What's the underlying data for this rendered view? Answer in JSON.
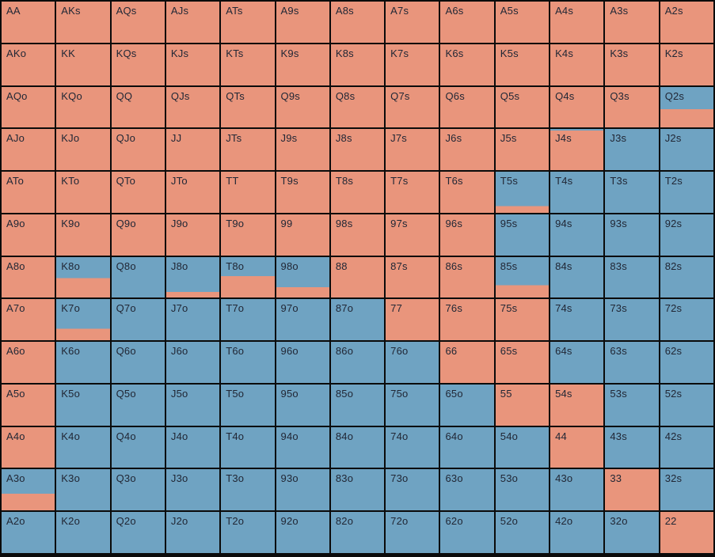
{
  "chart_data": {
    "type": "heatmap",
    "title": "",
    "rows": 13,
    "cols": 13,
    "grid": "13x13 poker starting-hand matrix",
    "palette": {
      "s": "#E9957C",
      "b": "#6FA3C2"
    },
    "palette_names": {
      "s": "salmon",
      "b": "blue"
    },
    "border_color": "#0b0b0b",
    "label_color": "#212735",
    "cells": [
      [
        {
          "label": "AA",
          "fill": "s"
        },
        {
          "label": "AKs",
          "fill": "s"
        },
        {
          "label": "AQs",
          "fill": "s"
        },
        {
          "label": "AJs",
          "fill": "s"
        },
        {
          "label": "ATs",
          "fill": "s"
        },
        {
          "label": "A9s",
          "fill": "s"
        },
        {
          "label": "A8s",
          "fill": "s"
        },
        {
          "label": "A7s",
          "fill": "s"
        },
        {
          "label": "A6s",
          "fill": "s"
        },
        {
          "label": "A5s",
          "fill": "s"
        },
        {
          "label": "A4s",
          "fill": "s"
        },
        {
          "label": "A3s",
          "fill": "s"
        },
        {
          "label": "A2s",
          "fill": "s"
        }
      ],
      [
        {
          "label": "AKo",
          "fill": "s"
        },
        {
          "label": "KK",
          "fill": "s"
        },
        {
          "label": "KQs",
          "fill": "s"
        },
        {
          "label": "KJs",
          "fill": "s"
        },
        {
          "label": "KTs",
          "fill": "s"
        },
        {
          "label": "K9s",
          "fill": "s"
        },
        {
          "label": "K8s",
          "fill": "s"
        },
        {
          "label": "K7s",
          "fill": "s"
        },
        {
          "label": "K6s",
          "fill": "s"
        },
        {
          "label": "K5s",
          "fill": "s"
        },
        {
          "label": "K4s",
          "fill": "s"
        },
        {
          "label": "K3s",
          "fill": "s"
        },
        {
          "label": "K2s",
          "fill": "s"
        }
      ],
      [
        {
          "label": "AQo",
          "fill": "s"
        },
        {
          "label": "KQo",
          "fill": "s"
        },
        {
          "label": "QQ",
          "fill": "s"
        },
        {
          "label": "QJs",
          "fill": "s"
        },
        {
          "label": "QTs",
          "fill": "s"
        },
        {
          "label": "Q9s",
          "fill": "s"
        },
        {
          "label": "Q8s",
          "fill": "s"
        },
        {
          "label": "Q7s",
          "fill": "s"
        },
        {
          "label": "Q6s",
          "fill": "s"
        },
        {
          "label": "Q5s",
          "fill": "s"
        },
        {
          "label": "Q4s",
          "fill": "s"
        },
        {
          "label": "Q3s",
          "fill": "s"
        },
        {
          "label": "Q2s",
          "fill": [
            [
              "b",
              55
            ],
            [
              "s",
              45
            ]
          ]
        }
      ],
      [
        {
          "label": "AJo",
          "fill": "s"
        },
        {
          "label": "KJo",
          "fill": "s"
        },
        {
          "label": "QJo",
          "fill": "s"
        },
        {
          "label": "JJ",
          "fill": "s"
        },
        {
          "label": "JTs",
          "fill": "s"
        },
        {
          "label": "J9s",
          "fill": "s"
        },
        {
          "label": "J8s",
          "fill": "s"
        },
        {
          "label": "J7s",
          "fill": "s"
        },
        {
          "label": "J6s",
          "fill": "s"
        },
        {
          "label": "J5s",
          "fill": "s"
        },
        {
          "label": "J4s",
          "fill": [
            [
              "b",
              4
            ],
            [
              "s",
              96
            ]
          ]
        },
        {
          "label": "J3s",
          "fill": "b"
        },
        {
          "label": "J2s",
          "fill": "b"
        }
      ],
      [
        {
          "label": "ATo",
          "fill": "s"
        },
        {
          "label": "KTo",
          "fill": "s"
        },
        {
          "label": "QTo",
          "fill": "s"
        },
        {
          "label": "JTo",
          "fill": "s"
        },
        {
          "label": "TT",
          "fill": "s"
        },
        {
          "label": "T9s",
          "fill": "s"
        },
        {
          "label": "T8s",
          "fill": "s"
        },
        {
          "label": "T7s",
          "fill": "s"
        },
        {
          "label": "T6s",
          "fill": "s"
        },
        {
          "label": "T5s",
          "fill": [
            [
              "b",
              84
            ],
            [
              "s",
              16
            ]
          ]
        },
        {
          "label": "T4s",
          "fill": "b"
        },
        {
          "label": "T3s",
          "fill": "b"
        },
        {
          "label": "T2s",
          "fill": "b"
        }
      ],
      [
        {
          "label": "A9o",
          "fill": "s"
        },
        {
          "label": "K9o",
          "fill": "s"
        },
        {
          "label": "Q9o",
          "fill": "s"
        },
        {
          "label": "J9o",
          "fill": "s"
        },
        {
          "label": "T9o",
          "fill": "s"
        },
        {
          "label": "99",
          "fill": "s"
        },
        {
          "label": "98s",
          "fill": "s"
        },
        {
          "label": "97s",
          "fill": "s"
        },
        {
          "label": "96s",
          "fill": "s"
        },
        {
          "label": "95s",
          "fill": "b"
        },
        {
          "label": "94s",
          "fill": "b"
        },
        {
          "label": "93s",
          "fill": "b"
        },
        {
          "label": "92s",
          "fill": "b"
        }
      ],
      [
        {
          "label": "A8o",
          "fill": "s"
        },
        {
          "label": "K8o",
          "fill": [
            [
              "b",
              52
            ],
            [
              "s",
              48
            ]
          ]
        },
        {
          "label": "Q8o",
          "fill": "b"
        },
        {
          "label": "J8o",
          "fill": [
            [
              "b",
              86
            ],
            [
              "s",
              14
            ]
          ]
        },
        {
          "label": "T8o",
          "fill": [
            [
              "b",
              47
            ],
            [
              "s",
              53
            ]
          ]
        },
        {
          "label": "98o",
          "fill": [
            [
              "b",
              75
            ],
            [
              "s",
              25
            ]
          ]
        },
        {
          "label": "88",
          "fill": "s"
        },
        {
          "label": "87s",
          "fill": "s"
        },
        {
          "label": "86s",
          "fill": "s"
        },
        {
          "label": "85s",
          "fill": [
            [
              "b",
              70
            ],
            [
              "s",
              30
            ]
          ]
        },
        {
          "label": "84s",
          "fill": "b"
        },
        {
          "label": "83s",
          "fill": "b"
        },
        {
          "label": "82s",
          "fill": "b"
        }
      ],
      [
        {
          "label": "A7o",
          "fill": "s"
        },
        {
          "label": "K7o",
          "fill": [
            [
              "b",
              72
            ],
            [
              "s",
              28
            ]
          ]
        },
        {
          "label": "Q7o",
          "fill": "b"
        },
        {
          "label": "J7o",
          "fill": "b"
        },
        {
          "label": "T7o",
          "fill": "b"
        },
        {
          "label": "97o",
          "fill": "b"
        },
        {
          "label": "87o",
          "fill": "b"
        },
        {
          "label": "77",
          "fill": "s"
        },
        {
          "label": "76s",
          "fill": "s"
        },
        {
          "label": "75s",
          "fill": "s"
        },
        {
          "label": "74s",
          "fill": "b"
        },
        {
          "label": "73s",
          "fill": "b"
        },
        {
          "label": "72s",
          "fill": "b"
        }
      ],
      [
        {
          "label": "A6o",
          "fill": "s"
        },
        {
          "label": "K6o",
          "fill": "b"
        },
        {
          "label": "Q6o",
          "fill": "b"
        },
        {
          "label": "J6o",
          "fill": "b"
        },
        {
          "label": "T6o",
          "fill": "b"
        },
        {
          "label": "96o",
          "fill": "b"
        },
        {
          "label": "86o",
          "fill": "b"
        },
        {
          "label": "76o",
          "fill": "b"
        },
        {
          "label": "66",
          "fill": "s"
        },
        {
          "label": "65s",
          "fill": "s"
        },
        {
          "label": "64s",
          "fill": "b"
        },
        {
          "label": "63s",
          "fill": "b"
        },
        {
          "label": "62s",
          "fill": "b"
        }
      ],
      [
        {
          "label": "A5o",
          "fill": "s"
        },
        {
          "label": "K5o",
          "fill": "b"
        },
        {
          "label": "Q5o",
          "fill": "b"
        },
        {
          "label": "J5o",
          "fill": "b"
        },
        {
          "label": "T5o",
          "fill": "b"
        },
        {
          "label": "95o",
          "fill": "b"
        },
        {
          "label": "85o",
          "fill": "b"
        },
        {
          "label": "75o",
          "fill": "b"
        },
        {
          "label": "65o",
          "fill": "b"
        },
        {
          "label": "55",
          "fill": "s"
        },
        {
          "label": "54s",
          "fill": "s"
        },
        {
          "label": "53s",
          "fill": "b"
        },
        {
          "label": "52s",
          "fill": "b"
        }
      ],
      [
        {
          "label": "A4o",
          "fill": "s"
        },
        {
          "label": "K4o",
          "fill": "b"
        },
        {
          "label": "Q4o",
          "fill": "b"
        },
        {
          "label": "J4o",
          "fill": "b"
        },
        {
          "label": "T4o",
          "fill": "b"
        },
        {
          "label": "94o",
          "fill": "b"
        },
        {
          "label": "84o",
          "fill": "b"
        },
        {
          "label": "74o",
          "fill": "b"
        },
        {
          "label": "64o",
          "fill": "b"
        },
        {
          "label": "54o",
          "fill": "b"
        },
        {
          "label": "44",
          "fill": "s"
        },
        {
          "label": "43s",
          "fill": "b"
        },
        {
          "label": "42s",
          "fill": "b"
        }
      ],
      [
        {
          "label": "A3o",
          "fill": [
            [
              "b",
              60
            ],
            [
              "s",
              40
            ]
          ]
        },
        {
          "label": "K3o",
          "fill": "b"
        },
        {
          "label": "Q3o",
          "fill": "b"
        },
        {
          "label": "J3o",
          "fill": "b"
        },
        {
          "label": "T3o",
          "fill": "b"
        },
        {
          "label": "93o",
          "fill": "b"
        },
        {
          "label": "83o",
          "fill": "b"
        },
        {
          "label": "73o",
          "fill": "b"
        },
        {
          "label": "63o",
          "fill": "b"
        },
        {
          "label": "53o",
          "fill": "b"
        },
        {
          "label": "43o",
          "fill": "b"
        },
        {
          "label": "33",
          "fill": "s"
        },
        {
          "label": "32s",
          "fill": "b"
        }
      ],
      [
        {
          "label": "A2o",
          "fill": "b"
        },
        {
          "label": "K2o",
          "fill": "b"
        },
        {
          "label": "Q2o",
          "fill": "b"
        },
        {
          "label": "J2o",
          "fill": "b"
        },
        {
          "label": "T2o",
          "fill": "b"
        },
        {
          "label": "92o",
          "fill": "b"
        },
        {
          "label": "82o",
          "fill": "b"
        },
        {
          "label": "72o",
          "fill": "b"
        },
        {
          "label": "62o",
          "fill": "b"
        },
        {
          "label": "52o",
          "fill": "b"
        },
        {
          "label": "42o",
          "fill": "b"
        },
        {
          "label": "32o",
          "fill": "b"
        },
        {
          "label": "22",
          "fill": "s"
        }
      ]
    ]
  }
}
